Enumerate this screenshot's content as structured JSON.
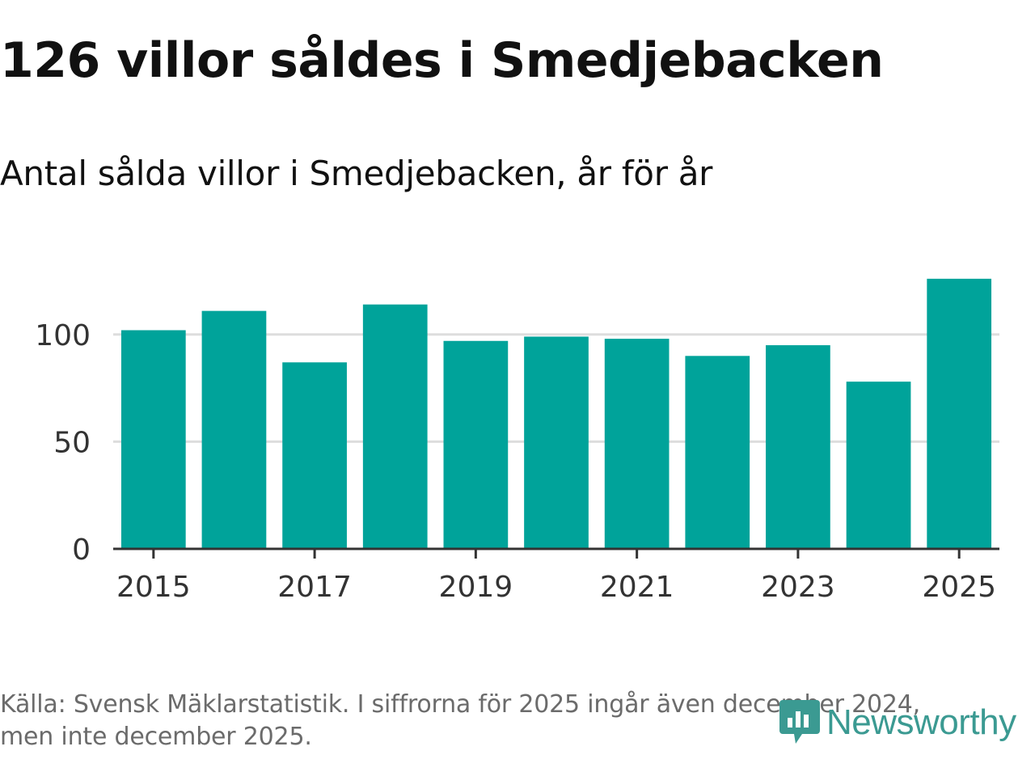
{
  "title": "126 villor såldes i Smedjebacken",
  "subtitle": "Antal sålda villor i Smedjebacken, år för år",
  "footnote": {
    "line1": "Källa: Svensk Mäklarstatistik. I siffrorna för 2025 ingår även december 2024,",
    "line2": "men inte december 2025."
  },
  "brand": {
    "name": "Newsworthy",
    "color": "#3b9a92"
  },
  "chart_data": {
    "type": "bar",
    "title": "126 villor såldes i Smedjebacken",
    "subtitle": "Antal sålda villor i Smedjebacken, år för år",
    "xlabel": "",
    "ylabel": "",
    "categories": [
      "2015",
      "2016",
      "2017",
      "2018",
      "2019",
      "2020",
      "2021",
      "2022",
      "2023",
      "2024",
      "2025"
    ],
    "values": [
      102,
      111,
      87,
      114,
      97,
      99,
      98,
      90,
      95,
      78,
      126
    ],
    "x_tick_labels": [
      "2015",
      "2017",
      "2019",
      "2021",
      "2023",
      "2025"
    ],
    "y_ticks": [
      0,
      50,
      100
    ],
    "ylim": [
      0,
      126
    ],
    "grid": true,
    "bar_color": "#00a39a",
    "gridline_color": "#dddddd",
    "axis_color": "#333333"
  }
}
